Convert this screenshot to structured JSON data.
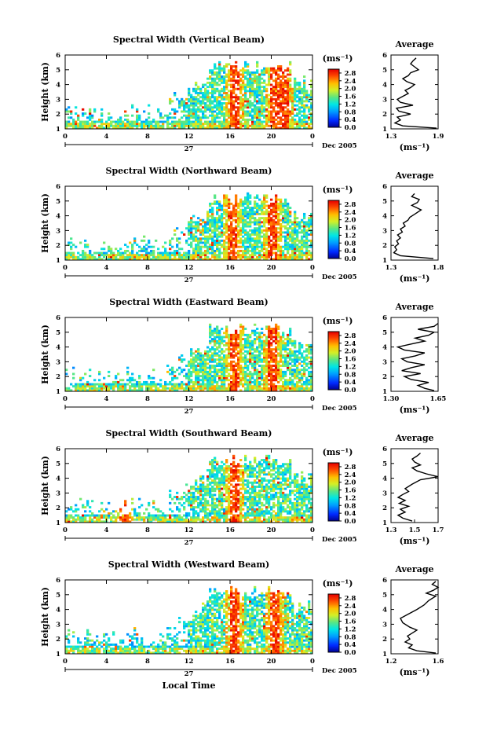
{
  "figure": {
    "time_label": "Local Time",
    "date_label": "Dec 2005",
    "day_label": "27",
    "colorbar": {
      "unit": "(ms⁻¹)",
      "ticks": [
        "0.0",
        "0.4",
        "0.8",
        "1.2",
        "1.6",
        "2.0",
        "2.4",
        "2.8"
      ],
      "range": [
        0.0,
        3.0
      ]
    }
  },
  "chart_data": [
    {
      "type": "heatmap",
      "title": "Spectral Width (Vertical Beam)",
      "xlabel": "",
      "ylabel": "Height (km)",
      "x_ticks": [
        "0",
        "4",
        "8",
        "12",
        "16",
        "20",
        "0"
      ],
      "xlim": [
        0,
        24
      ],
      "y_ticks": [
        "1",
        "2",
        "3",
        "4",
        "5",
        "6"
      ],
      "ylim": [
        1,
        6
      ],
      "colorbar_label": "(ms⁻¹)",
      "value_range": [
        0.0,
        3.0
      ],
      "strong_bands_hours": [
        16.5,
        20.3,
        21.2
      ]
    },
    {
      "type": "line",
      "title": "Average",
      "xlabel": "(ms⁻¹)",
      "x_ticks": [
        "1.3",
        "1.9"
      ],
      "xlim": [
        1.3,
        1.9
      ],
      "y_ticks": [
        "1",
        "2",
        "3",
        "4",
        "5",
        "6"
      ],
      "ylim": [
        1,
        6
      ],
      "x": [
        1.88,
        1.45,
        1.35,
        1.42,
        1.38,
        1.55,
        1.4,
        1.37,
        1.58,
        1.42,
        1.38,
        1.45,
        1.52,
        1.48,
        1.55,
        1.6,
        1.5,
        1.45,
        1.52,
        1.55,
        1.65,
        1.6,
        1.55,
        1.58,
        1.62
      ],
      "y": [
        1.05,
        1.2,
        1.4,
        1.6,
        1.8,
        2.0,
        2.2,
        2.4,
        2.6,
        2.8,
        3.0,
        3.2,
        3.4,
        3.6,
        3.8,
        4.0,
        4.2,
        4.4,
        4.6,
        4.8,
        5.0,
        5.2,
        5.4,
        5.6,
        5.8
      ]
    },
    {
      "type": "heatmap",
      "title": "Spectral Width (Northward Beam)",
      "xlabel": "",
      "ylabel": "Height (km)",
      "x_ticks": [
        "0",
        "4",
        "8",
        "12",
        "16",
        "20",
        "0"
      ],
      "xlim": [
        0,
        24
      ],
      "y_ticks": [
        "1",
        "2",
        "3",
        "4",
        "5",
        "6"
      ],
      "ylim": [
        1,
        6
      ],
      "colorbar_label": "(ms⁻¹)",
      "value_range": [
        0.0,
        3.0
      ],
      "strong_bands_hours": [
        16.3,
        20.2
      ]
    },
    {
      "type": "line",
      "title": "Average",
      "xlabel": "(ms⁻¹)",
      "x_ticks": [
        "1.3",
        "1.8"
      ],
      "xlim": [
        1.3,
        1.8
      ],
      "y_ticks": [
        "1",
        "2",
        "3",
        "4",
        "5",
        "6"
      ],
      "ylim": [
        1,
        6
      ],
      "x": [
        1.75,
        1.4,
        1.33,
        1.36,
        1.34,
        1.38,
        1.36,
        1.4,
        1.37,
        1.42,
        1.4,
        1.45,
        1.43,
        1.48,
        1.5,
        1.55,
        1.62,
        1.52,
        1.58,
        1.6,
        1.52,
        1.55
      ],
      "y": [
        1.1,
        1.3,
        1.5,
        1.7,
        1.9,
        2.1,
        2.3,
        2.5,
        2.7,
        2.9,
        3.1,
        3.3,
        3.5,
        3.7,
        3.9,
        4.1,
        4.4,
        4.7,
        4.9,
        5.1,
        5.3,
        5.5
      ]
    },
    {
      "type": "heatmap",
      "title": "Spectral Width (Eastward Beam)",
      "xlabel": "",
      "ylabel": "Height (km)",
      "x_ticks": [
        "0",
        "4",
        "8",
        "12",
        "16",
        "20",
        "0"
      ],
      "xlim": [
        0,
        24
      ],
      "y_ticks": [
        "1",
        "2",
        "3",
        "4",
        "5",
        "6"
      ],
      "ylim": [
        1,
        6
      ],
      "colorbar_label": "(ms⁻¹)",
      "value_range": [
        0.0,
        3.0
      ],
      "strong_bands_hours": [
        16.4,
        20.2
      ]
    },
    {
      "type": "line",
      "title": "Average",
      "xlabel": "(ms⁻¹)",
      "x_ticks": [
        "1.30",
        "1.65"
      ],
      "xlim": [
        1.3,
        1.65
      ],
      "y_ticks": [
        "1",
        "2",
        "3",
        "4",
        "5",
        "6"
      ],
      "ylim": [
        1,
        6
      ],
      "x": [
        1.62,
        1.55,
        1.5,
        1.58,
        1.45,
        1.4,
        1.52,
        1.38,
        1.45,
        1.55,
        1.42,
        1.38,
        1.48,
        1.55,
        1.4,
        1.35,
        1.45,
        1.55,
        1.48,
        1.58,
        1.62,
        1.5,
        1.62,
        1.65
      ],
      "y": [
        1.05,
        1.2,
        1.4,
        1.6,
        1.8,
        2.0,
        2.2,
        2.4,
        2.6,
        2.8,
        3.0,
        3.2,
        3.4,
        3.6,
        3.8,
        4.0,
        4.2,
        4.4,
        4.6,
        4.8,
        5.0,
        5.2,
        5.4,
        5.6
      ]
    },
    {
      "type": "heatmap",
      "title": "Spectral Width (Southward Beam)",
      "xlabel": "",
      "ylabel": "Height (km)",
      "x_ticks": [
        "0",
        "4",
        "8",
        "12",
        "16",
        "20",
        "0"
      ],
      "xlim": [
        0,
        24
      ],
      "y_ticks": [
        "1",
        "2",
        "3",
        "4",
        "5",
        "6"
      ],
      "ylim": [
        1,
        6
      ],
      "colorbar_label": "(ms⁻¹)",
      "value_range": [
        0.0,
        3.0
      ],
      "strong_bands_hours": [
        5.8,
        16.5
      ]
    },
    {
      "type": "line",
      "title": "Average",
      "xlabel": "(ms⁻¹)",
      "x_ticks": [
        "1.3",
        "1.5",
        "1.7"
      ],
      "xlim": [
        1.3,
        1.7
      ],
      "y_ticks": [
        "1",
        "2",
        "3",
        "4",
        "5",
        "6"
      ],
      "ylim": [
        1,
        6
      ],
      "x": [
        1.48,
        1.4,
        1.36,
        1.42,
        1.38,
        1.45,
        1.37,
        1.42,
        1.36,
        1.4,
        1.45,
        1.42,
        1.48,
        1.55,
        1.7,
        1.6,
        1.52,
        1.48,
        1.55,
        1.5,
        1.48,
        1.52,
        1.55
      ],
      "y": [
        1.1,
        1.3,
        1.5,
        1.7,
        1.9,
        2.1,
        2.3,
        2.5,
        2.7,
        2.9,
        3.1,
        3.3,
        3.6,
        3.9,
        4.1,
        4.3,
        4.5,
        4.7,
        4.9,
        5.1,
        5.3,
        5.5,
        5.7
      ]
    },
    {
      "type": "heatmap",
      "title": "Spectral Width (Westward Beam)",
      "xlabel": "Local Time",
      "ylabel": "Height (km)",
      "x_ticks": [
        "0",
        "4",
        "8",
        "12",
        "16",
        "20",
        "0"
      ],
      "xlim": [
        0,
        24
      ],
      "y_ticks": [
        "1",
        "2",
        "3",
        "4",
        "5",
        "6"
      ],
      "ylim": [
        1,
        6
      ],
      "colorbar_label": "(ms⁻¹)",
      "value_range": [
        0.0,
        3.0
      ],
      "strong_bands_hours": [
        16.5,
        20.3
      ]
    },
    {
      "type": "line",
      "title": "Average",
      "xlabel": "(ms⁻¹)",
      "x_ticks": [
        "1.2",
        "1.6"
      ],
      "xlim": [
        1.2,
        1.6
      ],
      "y_ticks": [
        "1",
        "2",
        "3",
        "4",
        "5",
        "6"
      ],
      "ylim": [
        1,
        6
      ],
      "x": [
        1.58,
        1.42,
        1.35,
        1.38,
        1.32,
        1.36,
        1.34,
        1.38,
        1.42,
        1.36,
        1.3,
        1.28,
        1.35,
        1.42,
        1.48,
        1.52,
        1.58,
        1.5,
        1.56,
        1.6,
        1.55,
        1.58
      ],
      "y": [
        1.05,
        1.2,
        1.4,
        1.6,
        1.8,
        2.0,
        2.2,
        2.4,
        2.6,
        2.8,
        3.1,
        3.4,
        3.7,
        4.0,
        4.3,
        4.6,
        4.9,
        5.1,
        5.3,
        5.5,
        5.7,
        5.9
      ]
    }
  ]
}
